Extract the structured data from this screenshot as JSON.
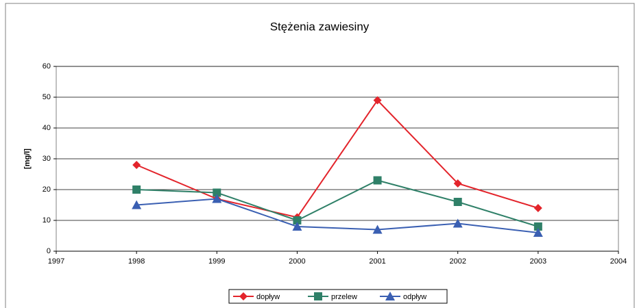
{
  "chart_data": {
    "type": "line",
    "title": "Stężenia zawiesiny",
    "ylabel": "[mg/l]",
    "x": [
      1998,
      1999,
      2000,
      2001,
      2002,
      2003
    ],
    "xlim": [
      1997,
      2004
    ],
    "xticks": [
      1997,
      1998,
      1999,
      2000,
      2001,
      2002,
      2003,
      2004
    ],
    "ylim": [
      0,
      60
    ],
    "yticks": [
      0,
      10,
      20,
      30,
      40,
      50,
      60
    ],
    "grid": true,
    "legend": "bottom",
    "series": [
      {
        "name": "dopływ",
        "color": "#e3242b",
        "marker": "diamond",
        "values": [
          28,
          17,
          11,
          49,
          22,
          14
        ]
      },
      {
        "name": "przelew",
        "color": "#2f8068",
        "marker": "square",
        "values": [
          20,
          19,
          10,
          23,
          16,
          8
        ]
      },
      {
        "name": "odpływ",
        "color": "#3a5fb2",
        "marker": "triangle",
        "values": [
          15,
          17,
          8,
          7,
          9,
          6
        ]
      }
    ]
  }
}
